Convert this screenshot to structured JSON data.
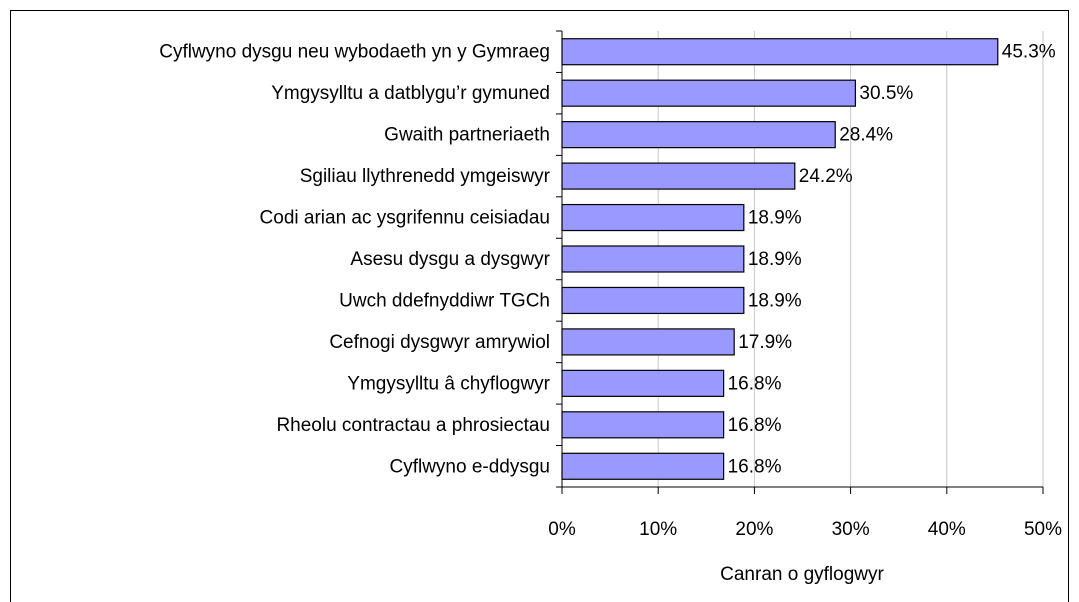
{
  "chart_data": {
    "type": "barh",
    "categories": [
      "Cyflwyno dysgu neu wybodaeth yn y Gymraeg",
      "Ymgysylltu a datblygu’r gymuned",
      "Gwaith partneriaeth",
      "Sgiliau llythrenedd ymgeiswyr",
      "Codi arian ac ysgrifennu ceisiadau",
      "Asesu dysgu a dysgwyr",
      "Uwch ddefnyddiwr TGCh",
      "Cefnogi dysgwyr amrywiol",
      "Ymgysylltu â chyflogwyr",
      "Rheolu contractau a phrosiectau",
      "Cyflwyno e-ddysgu"
    ],
    "values": [
      45.3,
      30.5,
      28.4,
      24.2,
      18.9,
      18.9,
      18.9,
      17.9,
      16.8,
      16.8,
      16.8
    ],
    "value_labels": [
      "45.3%",
      "30.5%",
      "28.4%",
      "24.2%",
      "18.9%",
      "18.9%",
      "18.9%",
      "17.9%",
      "16.8%",
      "16.8%",
      "16.8%"
    ],
    "color": "#9999ff",
    "xlabel": "Canran o gyflogwyr",
    "xlim": [
      0,
      50
    ],
    "xticks": [
      {
        "value": 0,
        "label": "0%"
      },
      {
        "value": 10,
        "label": "10%"
      },
      {
        "value": 20,
        "label": "20%"
      },
      {
        "value": 30,
        "label": "30%"
      },
      {
        "value": 40,
        "label": "40%"
      },
      {
        "value": 50,
        "label": "50%"
      }
    ],
    "grid": true
  }
}
